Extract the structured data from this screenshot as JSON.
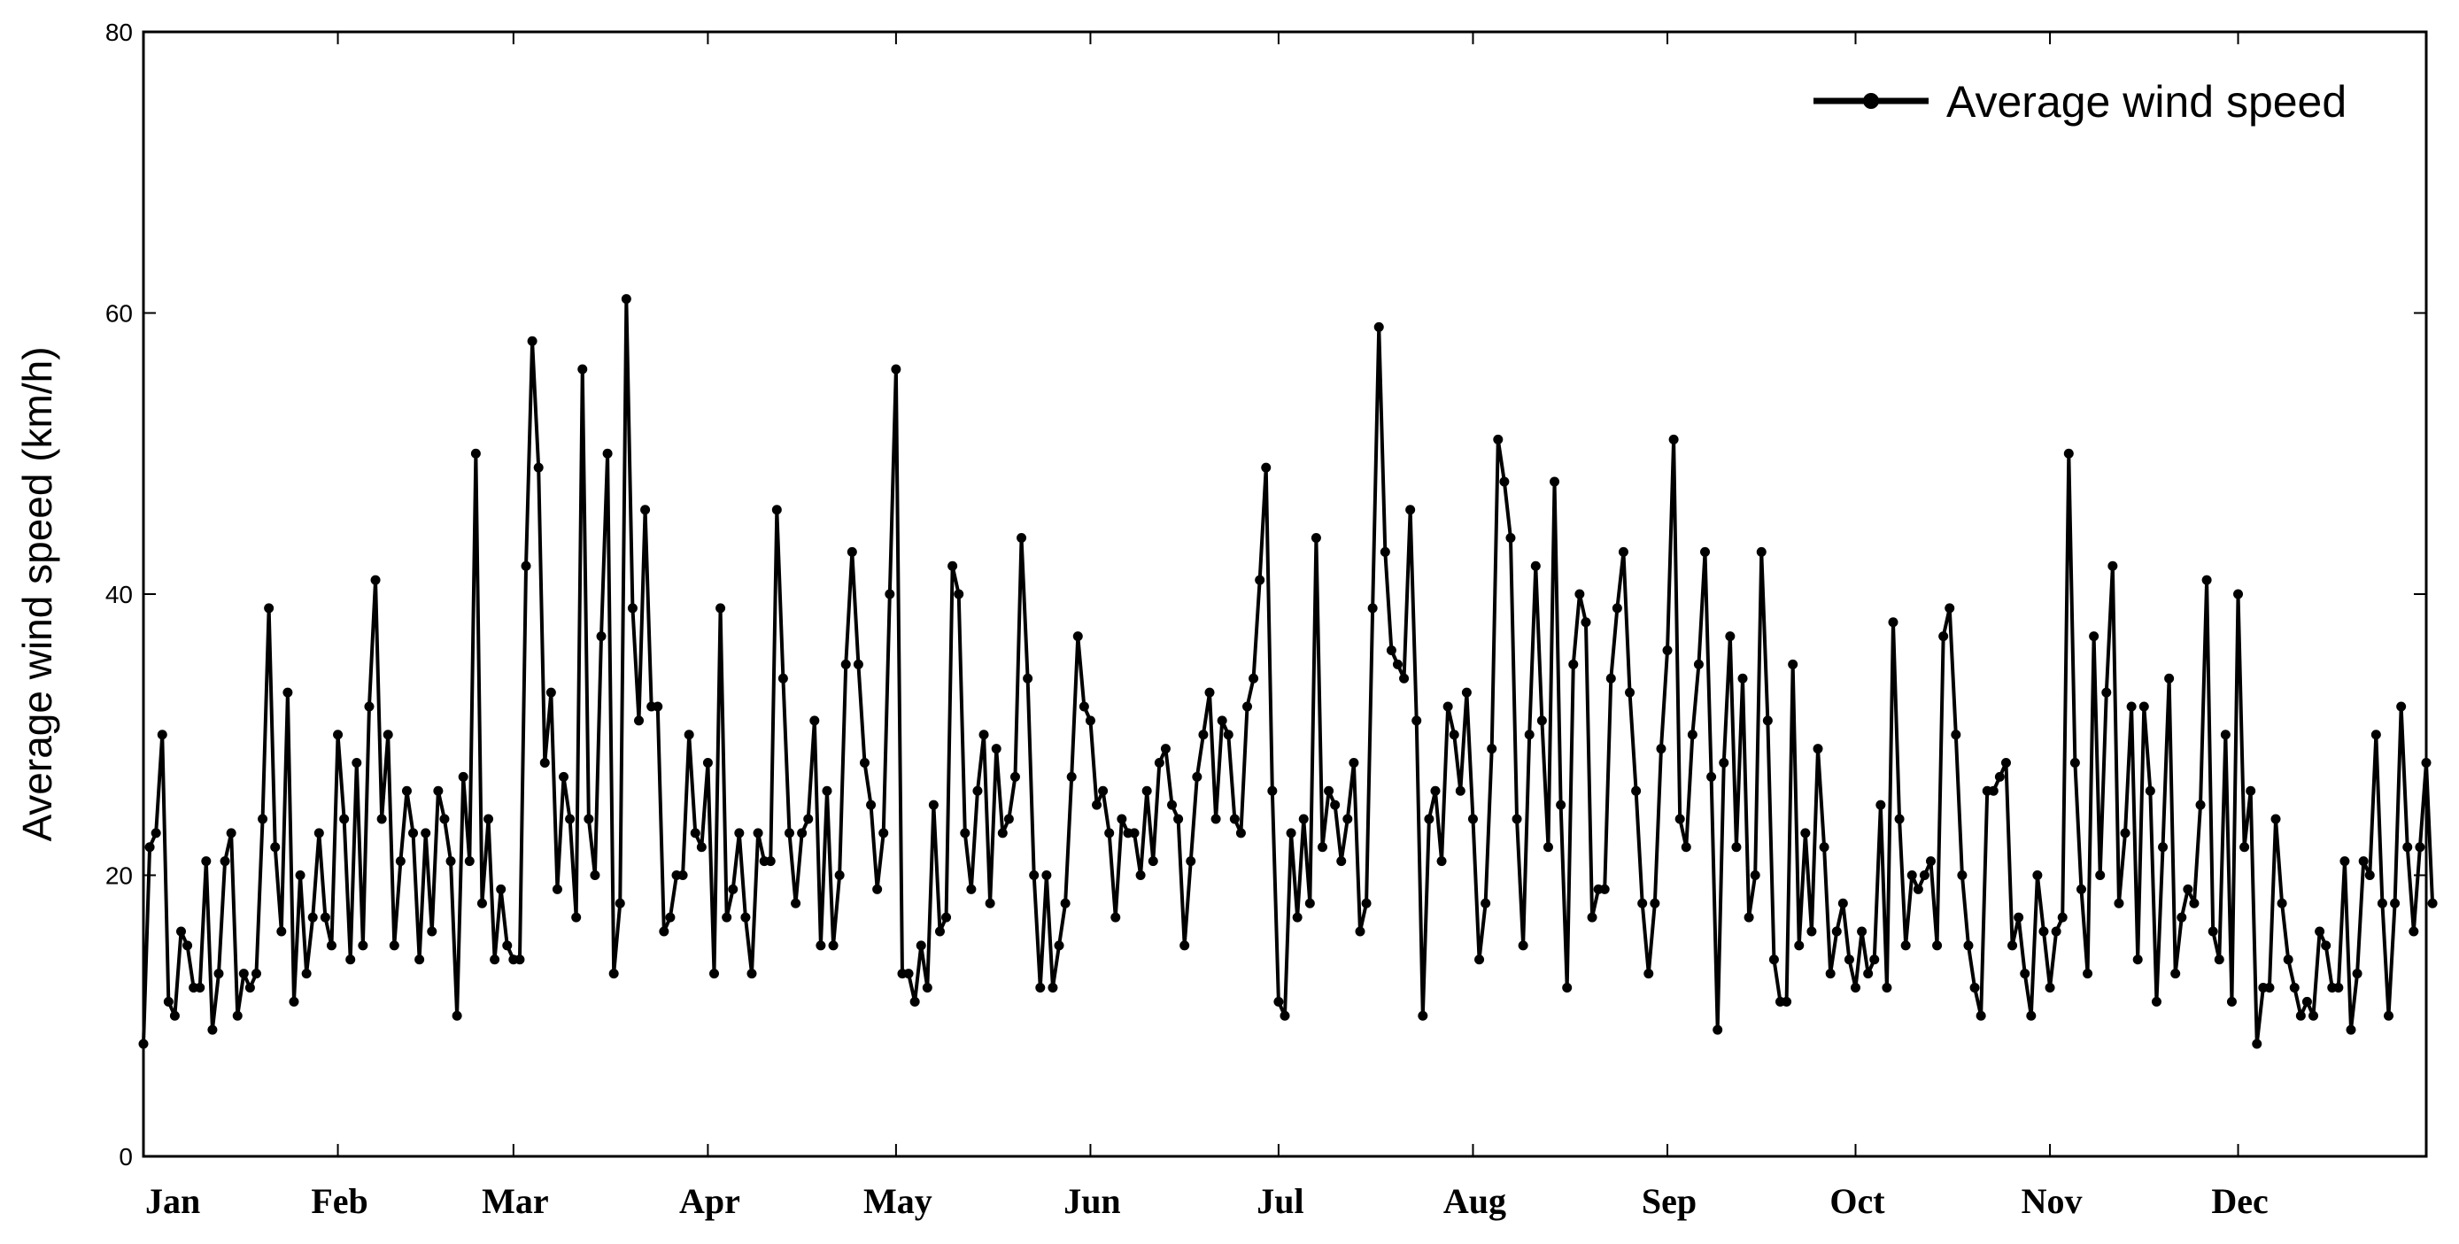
{
  "chart_data": {
    "type": "line",
    "ylabel": "Average wind speed (km/h)",
    "xlabel": "",
    "ylim": [
      0,
      80
    ],
    "yticks": [
      0,
      20,
      40,
      60,
      80
    ],
    "xlim": [
      1,
      365
    ],
    "xticks": [
      {
        "label": "Jan",
        "day": 1
      },
      {
        "label": "Feb",
        "day": 32
      },
      {
        "label": "Mar",
        "day": 60
      },
      {
        "label": "Apr",
        "day": 91
      },
      {
        "label": "May",
        "day": 121
      },
      {
        "label": "Jun",
        "day": 152
      },
      {
        "label": "Jul",
        "day": 182
      },
      {
        "label": "Aug",
        "day": 213
      },
      {
        "label": "Sep",
        "day": 244
      },
      {
        "label": "Oct",
        "day": 274
      },
      {
        "label": "Nov",
        "day": 305
      },
      {
        "label": "Dec",
        "day": 335
      }
    ],
    "grid": false,
    "legend": {
      "position": "top-right",
      "label": "Average wind speed"
    },
    "series": [
      {
        "name": "Average wind speed",
        "color": "#000000",
        "marker": "circle",
        "values": [
          8,
          22,
          23,
          30,
          11,
          10,
          16,
          15,
          12,
          12,
          21,
          9,
          13,
          21,
          23,
          10,
          13,
          12,
          13,
          24,
          39,
          22,
          16,
          33,
          11,
          20,
          13,
          17,
          23,
          17,
          15,
          30,
          24,
          14,
          28,
          15,
          32,
          41,
          24,
          30,
          15,
          21,
          26,
          23,
          14,
          23,
          16,
          26,
          24,
          21,
          10,
          27,
          21,
          50,
          18,
          24,
          14,
          19,
          15,
          14,
          14,
          42,
          58,
          49,
          28,
          33,
          19,
          27,
          24,
          17,
          56,
          24,
          20,
          37,
          50,
          13,
          18,
          61,
          39,
          31,
          46,
          32,
          32,
          16,
          17,
          20,
          20,
          30,
          23,
          22,
          28,
          13,
          39,
          17,
          19,
          23,
          17,
          13,
          23,
          21,
          21,
          46,
          34,
          23,
          18,
          23,
          24,
          31,
          15,
          26,
          15,
          20,
          35,
          43,
          35,
          28,
          25,
          19,
          23,
          40,
          56,
          13,
          13,
          11,
          15,
          12,
          25,
          16,
          17,
          42,
          40,
          23,
          19,
          26,
          30,
          18,
          29,
          23,
          24,
          27,
          44,
          34,
          20,
          12,
          20,
          12,
          15,
          18,
          27,
          37,
          32,
          31,
          25,
          26,
          23,
          17,
          24,
          23,
          23,
          20,
          26,
          21,
          28,
          29,
          25,
          24,
          15,
          21,
          27,
          30,
          33,
          24,
          31,
          30,
          24,
          23,
          32,
          34,
          41,
          49,
          26,
          11,
          10,
          23,
          17,
          24,
          18,
          44,
          22,
          26,
          25,
          21,
          24,
          28,
          16,
          18,
          39,
          59,
          43,
          36,
          35,
          34,
          46,
          31,
          10,
          24,
          26,
          21,
          32,
          30,
          26,
          33,
          24,
          14,
          18,
          29,
          51,
          48,
          44,
          24,
          15,
          30,
          42,
          31,
          22,
          48,
          25,
          12,
          35,
          40,
          38,
          17,
          19,
          19,
          34,
          39,
          43,
          33,
          26,
          18,
          13,
          18,
          29,
          36,
          51,
          24,
          22,
          30,
          35,
          43,
          27,
          9,
          28,
          37,
          22,
          34,
          17,
          20,
          43,
          31,
          14,
          11,
          11,
          35,
          15,
          23,
          16,
          29,
          22,
          13,
          16,
          18,
          14,
          12,
          16,
          13,
          14,
          25,
          12,
          38,
          24,
          15,
          20,
          19,
          20,
          21,
          15,
          37,
          39,
          30,
          20,
          15,
          12,
          10,
          26,
          26,
          27,
          28,
          15,
          17,
          13,
          10,
          20,
          16,
          12,
          16,
          17,
          50,
          28,
          19,
          13,
          37,
          20,
          33,
          42,
          18,
          23,
          32,
          14,
          32,
          26,
          11,
          22,
          34,
          13,
          17,
          19,
          18,
          25,
          41,
          16,
          14,
          30,
          11,
          40,
          22,
          26,
          8,
          12,
          12,
          24,
          18,
          14,
          12,
          10,
          11,
          10,
          16,
          15,
          12,
          12,
          21,
          9,
          13,
          21,
          20,
          30,
          18,
          10,
          18,
          32,
          22,
          16,
          22,
          28,
          18
        ]
      }
    ]
  }
}
